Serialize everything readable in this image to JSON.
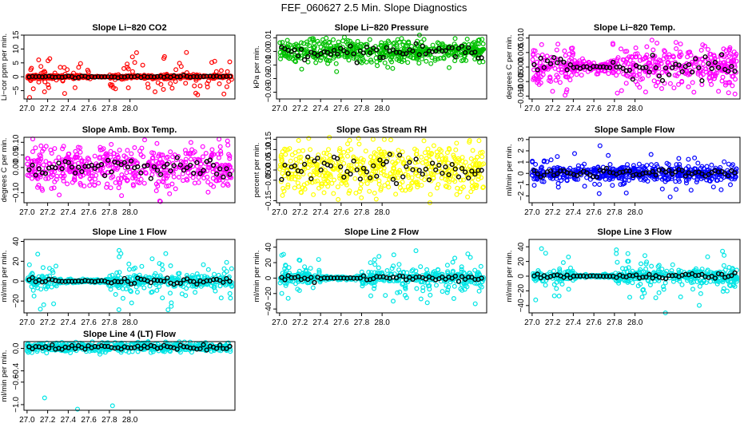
{
  "title": "FEF_060627  2.5 Min. Slope Diagnostics",
  "colors": {
    "black": "#000000"
  },
  "chart_data": [
    {
      "type": "scatter",
      "title": "Slope Li−820 CO2",
      "ylabel": "Li−cor ppm per min.",
      "color": "#ff0000",
      "xlim": [
        26.97,
        29.02
      ],
      "ylim": [
        -8,
        15
      ],
      "xticks": [
        "27.0",
        "27.2",
        "27.4",
        "27.6",
        "27.8",
        "28.0"
      ],
      "xtick_values": [
        27.0,
        27.2,
        27.4,
        27.6,
        27.8,
        28.0
      ],
      "yticks": [
        "−5",
        "0",
        "5",
        "10",
        "15"
      ],
      "ytick_values": [
        -5,
        0,
        5,
        10,
        15
      ],
      "core": 0.3,
      "spread": 7.5,
      "outlier_share": 0.25,
      "quiet": [
        27.62,
        27.8
      ],
      "center": 0.0
    },
    {
      "type": "scatter",
      "title": "Slope Li−820 Pressure",
      "ylabel": "kPa per min.",
      "color": "#00c000",
      "xlim": [
        26.97,
        29.02
      ],
      "ylim": [
        -0.035,
        0.012
      ],
      "xticks": [
        "27.0",
        "27.2",
        "27.4",
        "27.6",
        "27.8",
        "28.0"
      ],
      "xtick_values": [
        27.0,
        27.2,
        27.4,
        27.6,
        27.8,
        28.0
      ],
      "yticks": [
        "−0.03",
        "−0.02",
        "−0.01",
        "0.00",
        "0.01"
      ],
      "ytick_values": [
        -0.03,
        -0.02,
        -0.01,
        0.0,
        0.01
      ],
      "core": 0.004,
      "spread": 0.012,
      "outlier_share": 0.2,
      "quiet": null,
      "center": 0.0
    },
    {
      "type": "scatter",
      "title": "Slope Li−820 Temp.",
      "ylabel": "degrees C per min.",
      "color": "#ff00ff",
      "xlim": [
        26.97,
        29.02
      ],
      "ylim": [
        -0.011,
        0.011
      ],
      "xticks": [
        "27.0",
        "27.2",
        "27.4",
        "27.6",
        "27.8",
        "28.0"
      ],
      "xtick_values": [
        27.0,
        27.2,
        27.4,
        27.6,
        27.8,
        28.0
      ],
      "yticks": [
        "−0.010",
        "−0.005",
        "0.000",
        "0.005",
        "0.010"
      ],
      "ytick_values": [
        -0.01,
        -0.005,
        0.0,
        0.005,
        0.01
      ],
      "core": 0.0035,
      "spread": 0.008,
      "outlier_share": 0.2,
      "quiet": [
        27.4,
        27.78
      ],
      "center": 0.0
    },
    {
      "type": "scatter",
      "title": "Slope Amb. Box Temp.",
      "ylabel": "degrees C per min.",
      "color": "#ff00ff",
      "xlim": [
        26.97,
        29.02
      ],
      "ylim": [
        -0.14,
        0.12
      ],
      "xticks": [
        "27.0",
        "27.2",
        "27.4",
        "27.6",
        "27.8",
        "28.0"
      ],
      "xtick_values": [
        27.0,
        27.2,
        27.4,
        27.6,
        27.8,
        28.0
      ],
      "yticks": [
        "−0.10",
        "0.00",
        "0.05",
        "0.10"
      ],
      "ytick_values": [
        -0.1,
        0.0,
        0.05,
        0.1
      ],
      "core": 0.04,
      "spread": 0.09,
      "outlier_share": 0.12,
      "quiet": null,
      "center": 0.0
    },
    {
      "type": "scatter",
      "title": "Slope Gas Stream RH",
      "ylabel": "percent per min.",
      "color": "#ffff00",
      "xlim": [
        26.97,
        29.02
      ],
      "ylim": [
        -0.16,
        0.16
      ],
      "xticks": [
        "27.0",
        "27.2",
        "27.4",
        "27.6",
        "27.8",
        "28.0"
      ],
      "xtick_values": [
        27.0,
        27.2,
        27.4,
        27.6,
        27.8,
        28.0
      ],
      "yticks": [
        "−0.15",
        "−0.05",
        "0.00",
        "0.05",
        "0.10",
        "0.15"
      ],
      "ytick_values": [
        -0.15,
        -0.05,
        0.0,
        0.05,
        0.1,
        0.15
      ],
      "core": 0.06,
      "spread": 0.12,
      "outlier_share": 0.15,
      "quiet": null,
      "center": 0.0
    },
    {
      "type": "scatter",
      "title": "Slope Sample Flow",
      "ylabel": "ml/min per min.",
      "color": "#0000ff",
      "xlim": [
        26.97,
        29.02
      ],
      "ylim": [
        -2.6,
        3.2
      ],
      "xticks": [
        "27.0",
        "27.2",
        "27.4",
        "27.6",
        "27.8",
        "28.0"
      ],
      "xtick_values": [
        27.0,
        27.2,
        27.4,
        27.6,
        27.8,
        28.0
      ],
      "yticks": [
        "−2",
        "−1",
        "0",
        "1",
        "2",
        "3"
      ],
      "ytick_values": [
        -2,
        -1,
        0,
        1,
        2,
        3
      ],
      "core": 0.35,
      "spread": 1.8,
      "outlier_share": 0.15,
      "quiet": null,
      "center": 0.0
    },
    {
      "type": "scatter",
      "title": "Slope Line 1 Flow",
      "ylabel": "ml/min per min.",
      "color": "#00e5e5",
      "xlim": [
        26.97,
        29.02
      ],
      "ylim": [
        -32,
        42
      ],
      "xticks": [
        "27.0",
        "27.2",
        "27.4",
        "27.6",
        "27.8",
        "28.0"
      ],
      "xtick_values": [
        27.0,
        27.2,
        27.4,
        27.6,
        27.8,
        28.0
      ],
      "yticks": [
        "−20",
        "0",
        "20",
        "40"
      ],
      "ytick_values": [
        -20,
        0,
        20,
        40
      ],
      "core": 3,
      "spread": 25,
      "outlier_share": 0.3,
      "quiet": [
        27.3,
        27.78
      ],
      "center": 0.0
    },
    {
      "type": "scatter",
      "title": "Slope Line 2 Flow",
      "ylabel": "ml/min per min.",
      "color": "#00e5e5",
      "xlim": [
        26.97,
        29.02
      ],
      "ylim": [
        -45,
        50
      ],
      "xticks": [
        "27.0",
        "27.2",
        "27.4",
        "27.6",
        "27.8",
        "28.0"
      ],
      "xtick_values": [
        27.0,
        27.2,
        27.4,
        27.6,
        27.8,
        28.0
      ],
      "yticks": [
        "−40",
        "−20",
        "0",
        "20",
        "40"
      ],
      "ytick_values": [
        -40,
        -20,
        0,
        20,
        40
      ],
      "core": 4,
      "spread": 30,
      "outlier_share": 0.3,
      "quiet": [
        27.4,
        27.8
      ],
      "center": 0.0
    },
    {
      "type": "scatter",
      "title": "Slope Line 3 Flow",
      "ylabel": "ml/min per min.",
      "color": "#00e5e5",
      "xlim": [
        26.97,
        29.02
      ],
      "ylim": [
        -50,
        50
      ],
      "xticks": [
        "27.0",
        "27.2",
        "27.4",
        "27.6",
        "27.8",
        "28.0"
      ],
      "xtick_values": [
        27.0,
        27.2,
        27.4,
        27.6,
        27.8,
        28.0
      ],
      "yticks": [
        "−40",
        "−20",
        "0",
        "20",
        "40"
      ],
      "ytick_values": [
        -40,
        -20,
        0,
        20,
        40
      ],
      "core": 4,
      "spread": 30,
      "outlier_share": 0.3,
      "quiet": [
        27.4,
        27.8
      ],
      "center": 0.0
    },
    {
      "type": "scatter",
      "title": "Slope Line 4 (LT) Flow",
      "ylabel": "ml/min per min.",
      "color": "#00e5e5",
      "xlim": [
        26.97,
        29.02
      ],
      "ylim": [
        -1.1,
        0.12
      ],
      "xticks": [
        "27.0",
        "27.2",
        "27.4",
        "27.6",
        "27.8",
        "28.0"
      ],
      "xtick_values": [
        27.0,
        27.2,
        27.4,
        27.6,
        27.8,
        28.0
      ],
      "yticks": [
        "−1.0",
        "−0.6",
        "−0.4",
        "0.0"
      ],
      "ytick_values": [
        -1.0,
        -0.6,
        -0.4,
        0.0
      ],
      "core": 0.04,
      "spread": 0.08,
      "outlier_share": 0.05,
      "quiet": null,
      "center": 0.02,
      "outliers": [
        [
          27.17,
          -0.88
        ],
        [
          27.49,
          -1.08
        ],
        [
          27.83,
          -1.02
        ]
      ]
    }
  ]
}
